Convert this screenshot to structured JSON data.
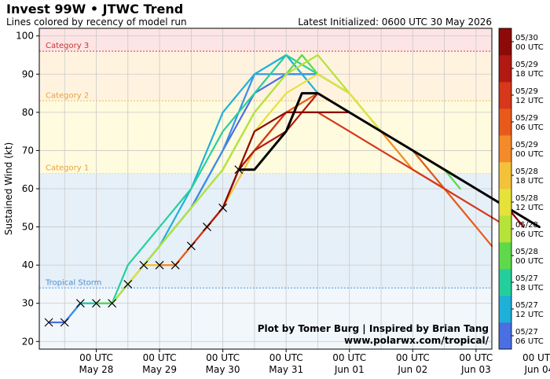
{
  "chart_data": {
    "type": "line",
    "title": "Invest 99W • JTWC Trend",
    "subtitle": "Lines colored by recency of model run",
    "latest": "Latest Initialized: 0600 UTC 30 May 2026",
    "ylabel": "Sustained Wind (kt)",
    "ylim": [
      18,
      102
    ],
    "yticks": [
      20,
      30,
      40,
      50,
      60,
      70,
      80,
      90,
      100
    ],
    "xlim": [
      -0.9,
      6.25
    ],
    "xticks": [
      {
        "x": 0,
        "line1": "00 UTC",
        "line2": "May 28"
      },
      {
        "x": 1,
        "line1": "00 UTC",
        "line2": "May 29"
      },
      {
        "x": 2,
        "line1": "00 UTC",
        "line2": "May 30"
      },
      {
        "x": 3,
        "line1": "00 UTC",
        "line2": "May 31"
      },
      {
        "x": 4,
        "line1": "00 UTC",
        "line2": "Jun 01"
      },
      {
        "x": 5,
        "line1": "00 UTC",
        "line2": "Jun 02"
      },
      {
        "x": 6,
        "line1": "00 UTC",
        "line2": "Jun 03"
      },
      {
        "x": 7,
        "line1": "00 UTC",
        "line2": "Jun 04"
      }
    ],
    "grid": true,
    "categories": [
      {
        "name": "Tropical Storm",
        "min": 34,
        "max": 64,
        "band_color": "#e6f0f9",
        "line_color": "#6fa8dc",
        "label_color": "#4a90d0"
      },
      {
        "name": "Category 1",
        "min": 64,
        "max": 83,
        "band_color": "#fffbdf",
        "line_color": "#f2e36a",
        "label_color": "#e8a23a"
      },
      {
        "name": "Category 2",
        "min": 83,
        "max": 96,
        "band_color": "#fff3e0",
        "line_color": "#f3c76a",
        "label_color": "#e8a23a"
      },
      {
        "name": "Category 3",
        "min": 96,
        "max": 102,
        "band_color": "#fde5e5",
        "line_color": "#e05a5a",
        "label_color": "#cc3333"
      }
    ],
    "below_band_color": "#f2f7fc",
    "best_track": {
      "x": [
        -0.75,
        -0.5,
        -0.25,
        0,
        0.25,
        0.5,
        0.75,
        1,
        1.25,
        1.5,
        1.75,
        2,
        2.25
      ],
      "values": [
        25,
        25,
        30,
        30,
        30,
        35,
        40,
        40,
        40,
        45,
        50,
        55,
        65
      ]
    },
    "series": [
      {
        "color": "#4a6fe3",
        "x": [
          -0.75,
          -0.5,
          -0.25,
          0,
          0.25,
          0.5,
          1,
          1.5,
          2,
          2.5,
          3,
          3.5,
          4
        ],
        "values": [
          25,
          25,
          30,
          30,
          30,
          35,
          45,
          55,
          70,
          85,
          90,
          90,
          85
        ]
      },
      {
        "color": "#3a8ee8",
        "x": [
          -0.5,
          -0.25,
          0,
          0.25,
          0.5,
          1,
          1.5,
          2,
          2.5,
          3,
          3.5,
          4
        ],
        "values": [
          25,
          30,
          30,
          30,
          35,
          45,
          55,
          70,
          90,
          90,
          90,
          85
        ]
      },
      {
        "color": "#1fb0d8",
        "x": [
          -0.25,
          0,
          0.25,
          0.5,
          1,
          1.5,
          2,
          2.5,
          3,
          3.5,
          4,
          4.5
        ],
        "values": [
          30,
          30,
          30,
          35,
          45,
          60,
          80,
          90,
          95,
          85,
          80,
          75
        ]
      },
      {
        "color": "#24cf9c",
        "x": [
          -0.25,
          0,
          0.25,
          0.5,
          1,
          1.5,
          2,
          2.5,
          3,
          3.5,
          4,
          4.5,
          5,
          5.5
        ],
        "values": [
          30,
          30,
          30,
          40,
          50,
          60,
          75,
          85,
          95,
          90,
          85,
          75,
          70,
          60
        ]
      },
      {
        "color": "#5fd84b",
        "x": [
          0,
          0.25,
          0.5,
          1,
          1.5,
          2,
          2.5,
          3,
          3.25,
          3.5,
          4,
          4.5,
          5,
          5.5,
          5.75
        ],
        "values": [
          30,
          30,
          35,
          45,
          55,
          65,
          80,
          90,
          95,
          90,
          85,
          75,
          70,
          65,
          60
        ]
      },
      {
        "color": "#b6e23a",
        "x": [
          0.25,
          0.5,
          0.75,
          1,
          1.5,
          2,
          2.5,
          3,
          3.5,
          4,
          4.5,
          5
        ],
        "values": [
          30,
          35,
          40,
          45,
          55,
          65,
          80,
          90,
          95,
          85,
          75,
          70
        ]
      },
      {
        "color": "#e6e23a",
        "x": [
          0.5,
          0.75,
          1,
          1.25,
          1.5,
          2,
          2.5,
          3,
          3.5,
          4,
          4.5,
          5,
          5.5
        ],
        "values": [
          35,
          40,
          40,
          40,
          45,
          55,
          75,
          85,
          90,
          85,
          75,
          70,
          65
        ]
      },
      {
        "color": "#f2c23a",
        "x": [
          0.75,
          1,
          1.25,
          1.5,
          1.75,
          2,
          2.5,
          3,
          3.5,
          4,
          4.5,
          5,
          5.5,
          6
        ],
        "values": [
          40,
          40,
          40,
          45,
          50,
          55,
          70,
          80,
          80,
          80,
          75,
          65,
          60,
          50
        ]
      },
      {
        "color": "#f58a2a",
        "x": [
          1,
          1.25,
          1.5,
          1.75,
          2,
          2.25,
          2.5,
          3,
          3.5,
          4,
          4.5,
          5,
          5.5
        ],
        "values": [
          40,
          40,
          45,
          50,
          55,
          65,
          70,
          80,
          80,
          80,
          75,
          65,
          60
        ]
      },
      {
        "color": "#e85a1c",
        "x": [
          1.25,
          1.5,
          1.75,
          2,
          2.25,
          2.5,
          3,
          3.5,
          4,
          4.5,
          5,
          5.5,
          6,
          6.25
        ],
        "values": [
          40,
          45,
          50,
          55,
          65,
          70,
          80,
          85,
          80,
          75,
          70,
          60,
          50,
          45
        ]
      },
      {
        "color": "#d5381a",
        "x": [
          1.5,
          1.75,
          2,
          2.25,
          2.5,
          3,
          3.5,
          4,
          4.5,
          5,
          5.5,
          6,
          6.5
        ],
        "values": [
          45,
          50,
          55,
          65,
          70,
          80,
          80,
          75,
          70,
          65,
          60,
          55,
          50
        ]
      },
      {
        "color": "#b01a12",
        "x": [
          1.75,
          2,
          2.25,
          2.5,
          3,
          3.5,
          4,
          4.5,
          5,
          5.5,
          6,
          6.5,
          6.75
        ],
        "values": [
          50,
          55,
          65,
          70,
          75,
          85,
          80,
          75,
          70,
          65,
          60,
          55,
          50
        ]
      },
      {
        "color": "#8c0a08",
        "x": [
          2,
          2.25,
          2.5,
          3,
          3.5,
          4,
          4.5,
          5,
          5.5,
          6,
          6.5,
          6.75
        ],
        "values": [
          55,
          65,
          75,
          80,
          80,
          80,
          75,
          70,
          65,
          60,
          55,
          50
        ]
      },
      {
        "color": "#000000",
        "width": 3,
        "x": [
          2.25,
          2.5,
          3,
          3.25,
          3.5,
          4,
          4.5,
          5,
          5.5,
          6,
          6.5,
          7
        ],
        "values": [
          65,
          65,
          75,
          85,
          85,
          80,
          75,
          70,
          65,
          60,
          55,
          50
        ]
      }
    ],
    "colorbar": {
      "colors": [
        "#4a6fe3",
        "#1fb0d8",
        "#24cf9c",
        "#5fd84b",
        "#b6e23a",
        "#e6e23a",
        "#f2c23a",
        "#f58a2a",
        "#e85a1c",
        "#d5381a",
        "#b01a12",
        "#8c0a08"
      ],
      "ticks": [
        {
          "line1": "05/27",
          "line2": "06 UTC"
        },
        {
          "line1": "05/27",
          "line2": "12 UTC"
        },
        {
          "line1": "05/27",
          "line2": "18 UTC"
        },
        {
          "line1": "05/28",
          "line2": "00 UTC"
        },
        {
          "line1": "05/28",
          "line2": "06 UTC"
        },
        {
          "line1": "05/28",
          "line2": "12 UTC"
        },
        {
          "line1": "05/28",
          "line2": "18 UTC"
        },
        {
          "line1": "05/29",
          "line2": "00 UTC"
        },
        {
          "line1": "05/29",
          "line2": "06 UTC"
        },
        {
          "line1": "05/29",
          "line2": "12 UTC"
        },
        {
          "line1": "05/29",
          "line2": "18 UTC"
        },
        {
          "line1": "05/30",
          "line2": "00 UTC"
        }
      ]
    },
    "credit_line1": "Plot by Tomer Burg | Inspired by Brian Tang",
    "credit_line2": "www.polarwx.com/tropical/"
  }
}
